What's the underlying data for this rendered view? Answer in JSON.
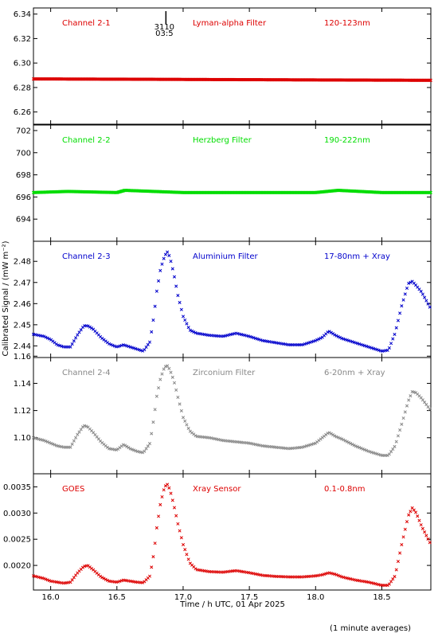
{
  "chart_data": {
    "type": "scatter",
    "xlabel": "Time / h UTC, 01 Apr 2025",
    "ylabel": "Calibrated Signal / (mW m⁻²)",
    "footnote": "(1 minute averages)",
    "xlim": [
      15.87,
      18.87
    ],
    "xticks": [
      "16.0",
      "16.5",
      "17.0",
      "17.5",
      "18.0",
      "18.5"
    ],
    "xtick_values": [
      16.0,
      16.5,
      17.0,
      17.5,
      18.0,
      18.5
    ],
    "marker_annotation": {
      "x": 16.87,
      "lines": [
        "3110",
        "03:5"
      ]
    },
    "panels": [
      {
        "channel": "Channel 2-1",
        "filter": "Lyman-alpha Filter",
        "band": "120-123nm",
        "color": "#dd0000",
        "ylim": [
          6.25,
          6.345
        ],
        "yticks": [
          "6.34",
          "6.32",
          "6.30",
          "6.28",
          "6.26"
        ],
        "ytick_values": [
          6.34,
          6.32,
          6.3,
          6.28,
          6.26
        ],
        "series": {
          "x": [
            15.87,
            16.5,
            17.0,
            17.5,
            18.0,
            18.5,
            18.87
          ],
          "y": [
            6.287,
            6.2868,
            6.2866,
            6.2864,
            6.2862,
            6.286,
            6.2859
          ]
        }
      },
      {
        "channel": "Channel 2-2",
        "filter": "Herzberg Filter",
        "band": "190-222nm",
        "color": "#00dd00",
        "ylim": [
          692,
          702.5
        ],
        "yticks": [
          "702",
          "700",
          "698",
          "696",
          "694"
        ],
        "ytick_values": [
          702,
          700,
          698,
          696,
          694
        ],
        "series": {
          "x": [
            15.87,
            16.13,
            16.5,
            16.56,
            17.0,
            17.5,
            18.0,
            18.17,
            18.5,
            18.87
          ],
          "y": [
            696.4,
            696.5,
            696.4,
            696.6,
            696.4,
            696.4,
            696.4,
            696.6,
            696.4,
            696.4
          ]
        }
      },
      {
        "channel": "Channel 2-3",
        "filter": "Aluminium Filter",
        "band": "17-80nm + Xray",
        "color": "#0000cc",
        "ylim": [
          2.4345,
          2.4895
        ],
        "yticks": [
          "2.48",
          "2.47",
          "2.46",
          "2.45",
          "2.44"
        ],
        "ytick_values": [
          2.48,
          2.47,
          2.46,
          2.45,
          2.44
        ],
        "series": {
          "x": [
            15.87,
            15.95,
            16.0,
            16.05,
            16.1,
            16.15,
            16.2,
            16.25,
            16.28,
            16.32,
            16.38,
            16.44,
            16.5,
            16.55,
            16.6,
            16.65,
            16.7,
            16.75,
            16.78,
            16.8,
            16.83,
            16.86,
            16.88,
            16.9,
            16.93,
            16.96,
            17.0,
            17.05,
            17.1,
            17.2,
            17.3,
            17.4,
            17.5,
            17.6,
            17.7,
            17.8,
            17.9,
            18.0,
            18.05,
            18.1,
            18.15,
            18.2,
            18.3,
            18.4,
            18.5,
            18.55,
            18.6,
            18.65,
            18.7,
            18.73,
            18.76,
            18.8,
            18.87
          ],
          "y": [
            2.4455,
            2.4445,
            2.443,
            2.4405,
            2.4395,
            2.4395,
            2.445,
            2.4495,
            2.4495,
            2.448,
            2.444,
            2.441,
            2.4395,
            2.4405,
            2.4395,
            2.4385,
            2.4375,
            2.442,
            2.4545,
            2.4655,
            2.4765,
            2.4825,
            2.4845,
            2.482,
            2.474,
            2.464,
            2.454,
            2.4475,
            2.446,
            2.445,
            2.4445,
            2.446,
            2.4445,
            2.4425,
            2.4415,
            2.4405,
            2.4405,
            2.4425,
            2.444,
            2.447,
            2.445,
            2.4435,
            2.4415,
            2.4395,
            2.4375,
            2.438,
            2.446,
            2.459,
            2.4695,
            2.4705,
            2.4685,
            2.4655,
            2.4575
          ]
        }
      },
      {
        "channel": "Channel 2-4",
        "filter": "Zirconium Filter",
        "band": "6-20nm + Xray",
        "color": "#888888",
        "ylim": [
          1.0735,
          1.159
        ],
        "yticks": [
          "1.16",
          "1.14",
          "1.12",
          "1.10"
        ],
        "ytick_values": [
          1.16,
          1.14,
          1.12,
          1.1
        ],
        "series": {
          "x": [
            15.87,
            15.95,
            16.0,
            16.05,
            16.1,
            16.15,
            16.2,
            16.25,
            16.28,
            16.32,
            16.38,
            16.44,
            16.5,
            16.55,
            16.6,
            16.65,
            16.7,
            16.75,
            16.78,
            16.8,
            16.83,
            16.86,
            16.88,
            16.9,
            16.93,
            16.96,
            17.0,
            17.05,
            17.1,
            17.2,
            17.3,
            17.4,
            17.5,
            17.6,
            17.7,
            17.8,
            17.9,
            18.0,
            18.05,
            18.1,
            18.15,
            18.2,
            18.3,
            18.4,
            18.5,
            18.55,
            18.6,
            18.65,
            18.7,
            18.73,
            18.76,
            18.8,
            18.87
          ],
          "y": [
            1.1,
            1.098,
            1.096,
            1.094,
            1.093,
            1.093,
            1.102,
            1.109,
            1.108,
            1.104,
            1.097,
            1.092,
            1.091,
            1.095,
            1.092,
            1.09,
            1.089,
            1.096,
            1.115,
            1.13,
            1.144,
            1.152,
            1.153,
            1.15,
            1.142,
            1.13,
            1.115,
            1.105,
            1.101,
            1.1,
            1.098,
            1.097,
            1.096,
            1.094,
            1.093,
            1.092,
            1.093,
            1.096,
            1.1,
            1.104,
            1.101,
            1.099,
            1.094,
            1.09,
            1.087,
            1.087,
            1.094,
            1.11,
            1.127,
            1.134,
            1.133,
            1.129,
            1.12
          ]
        }
      },
      {
        "channel": "GOES",
        "filter": "Xray Sensor",
        "band": "0.1-0.8nm",
        "color": "#dd0000",
        "ylim": [
          0.00153,
          0.00375
        ],
        "yticks": [
          "0.0035",
          "0.0030",
          "0.0025",
          "0.0020"
        ],
        "ytick_values": [
          0.0035,
          0.003,
          0.0025,
          0.002
        ],
        "series": {
          "x": [
            15.87,
            15.95,
            16.0,
            16.05,
            16.1,
            16.15,
            16.2,
            16.25,
            16.28,
            16.32,
            16.38,
            16.44,
            16.5,
            16.55,
            16.6,
            16.65,
            16.7,
            16.75,
            16.78,
            16.8,
            16.83,
            16.86,
            16.88,
            16.9,
            16.93,
            16.96,
            17.0,
            17.05,
            17.1,
            17.2,
            17.3,
            17.4,
            17.5,
            17.6,
            17.7,
            17.8,
            17.9,
            18.0,
            18.05,
            18.1,
            18.15,
            18.2,
            18.3,
            18.4,
            18.5,
            18.55,
            18.6,
            18.65,
            18.7,
            18.73,
            18.76,
            18.8,
            18.87
          ],
          "y": [
            0.0018,
            0.00175,
            0.0017,
            0.00168,
            0.00166,
            0.00168,
            0.00185,
            0.00198,
            0.002,
            0.00192,
            0.00178,
            0.0017,
            0.00168,
            0.00172,
            0.0017,
            0.00168,
            0.00167,
            0.0018,
            0.00225,
            0.0027,
            0.0032,
            0.0035,
            0.00355,
            0.00345,
            0.00315,
            0.0028,
            0.0024,
            0.00205,
            0.00192,
            0.00188,
            0.00187,
            0.0019,
            0.00186,
            0.00181,
            0.00179,
            0.00178,
            0.00178,
            0.0018,
            0.00182,
            0.00186,
            0.00183,
            0.00178,
            0.00172,
            0.00168,
            0.00162,
            0.00162,
            0.0018,
            0.0024,
            0.00295,
            0.0031,
            0.003,
            0.00275,
            0.0024
          ]
        }
      }
    ]
  }
}
